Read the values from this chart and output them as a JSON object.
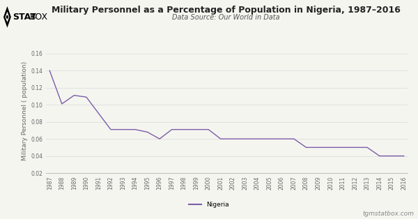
{
  "title": "Military Personnel as a Percentage of Population in Nigeria, 1987–2016",
  "subtitle": "Data Source: Our World in Data",
  "ylabel": "Military Personnel ( population)",
  "watermark": "tgmstatbox.com",
  "legend_label": "Nigeria",
  "line_color": "#7b5ea7",
  "background_color": "#f5f5f0",
  "plot_bg_color": "#f5f5f0",
  "grid_color": "#dddddd",
  "ylim": [
    0.02,
    0.165
  ],
  "yticks": [
    0.02,
    0.04,
    0.06,
    0.08,
    0.1,
    0.12,
    0.14,
    0.16
  ],
  "years": [
    1987,
    1988,
    1989,
    1990,
    1991,
    1992,
    1993,
    1994,
    1995,
    1996,
    1997,
    1998,
    1999,
    2000,
    2001,
    2002,
    2003,
    2004,
    2005,
    2006,
    2007,
    2008,
    2009,
    2010,
    2011,
    2012,
    2013,
    2014,
    2015,
    2016
  ],
  "values": [
    0.14,
    0.101,
    0.111,
    0.109,
    0.09,
    0.071,
    0.071,
    0.071,
    0.068,
    0.06,
    0.071,
    0.071,
    0.071,
    0.071,
    0.06,
    0.06,
    0.06,
    0.06,
    0.06,
    0.06,
    0.06,
    0.05,
    0.05,
    0.05,
    0.05,
    0.05,
    0.05,
    0.04,
    0.04,
    0.04
  ],
  "title_fontsize": 9,
  "subtitle_fontsize": 7,
  "tick_fontsize": 5.5,
  "ylabel_fontsize": 6.5,
  "logo_bold_text": "STAT",
  "logo_normal_text": "BOX"
}
